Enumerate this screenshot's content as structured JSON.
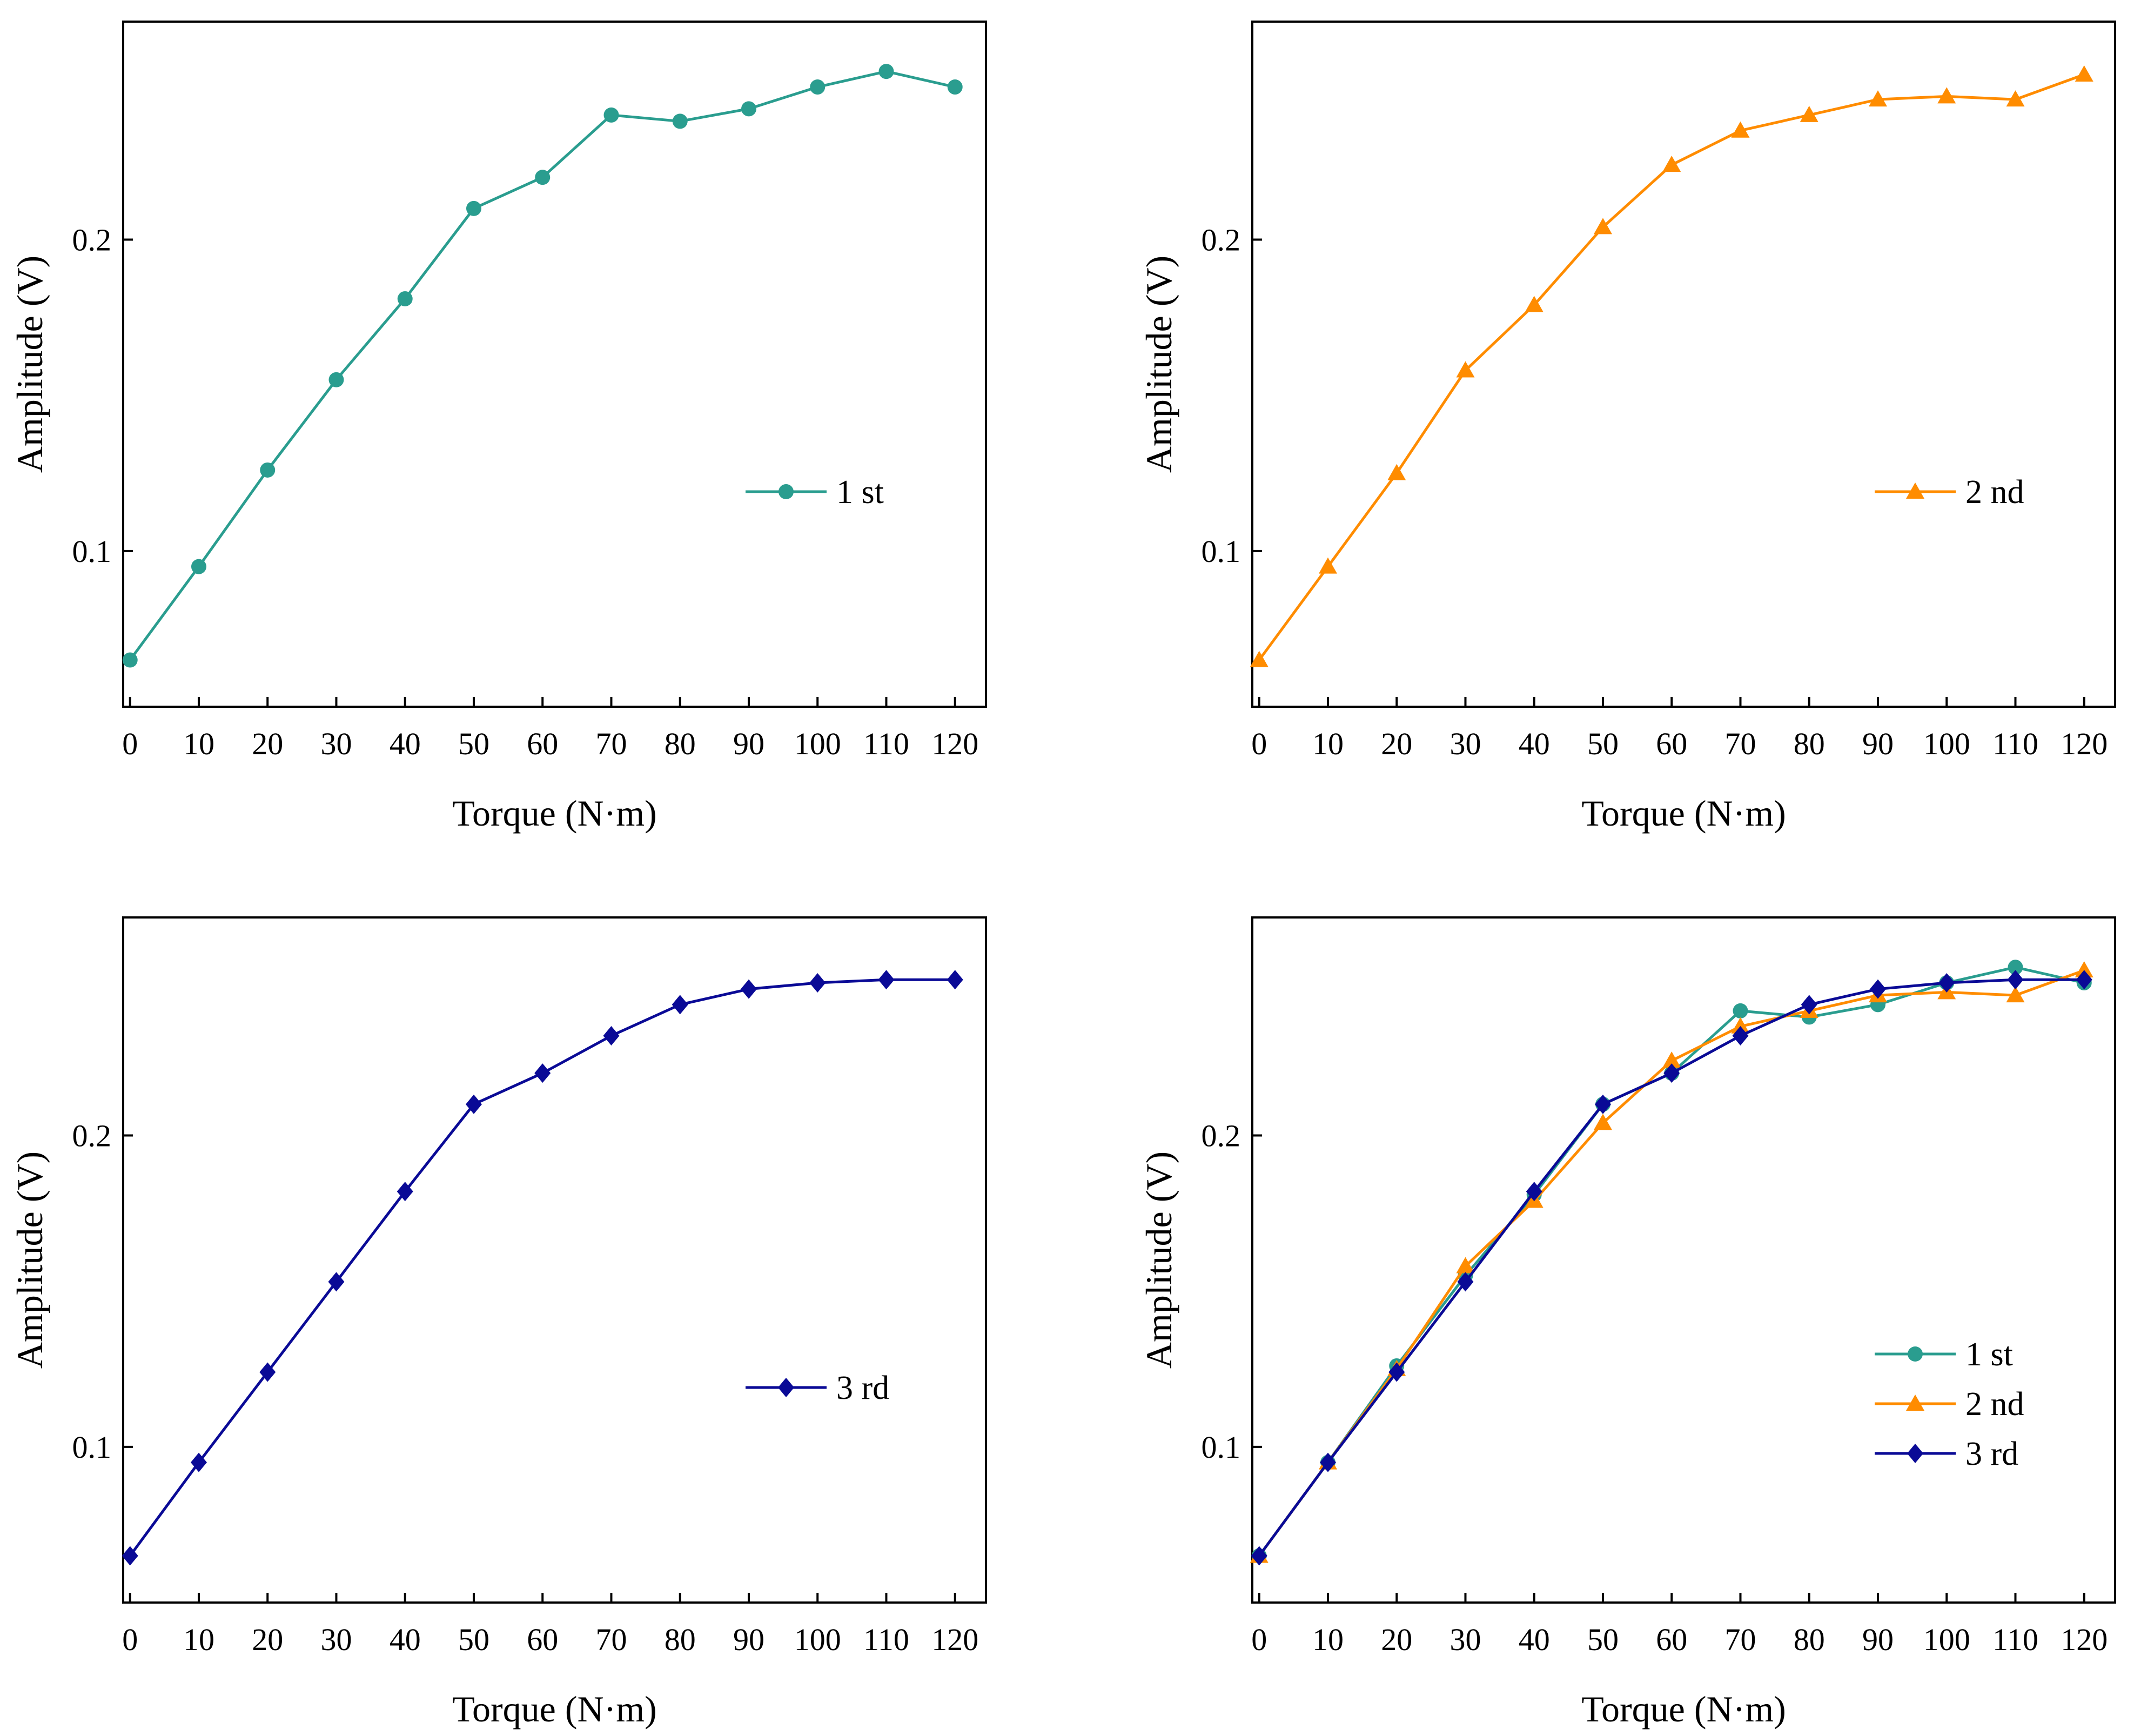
{
  "colors": {
    "series_1": "#2a9d8f",
    "series_2": "#ff8c00",
    "series_3": "#0a0a96",
    "axis": "#000000"
  },
  "marker_shapes": {
    "series_1": "circle",
    "series_2": "triangle",
    "series_3": "diamond"
  },
  "chart_data": [
    {
      "type": "line",
      "xlabel": "Torque (N·m)",
      "ylabel": "Amplitude (V)",
      "x": [
        0,
        10,
        20,
        30,
        40,
        50,
        60,
        70,
        80,
        90,
        100,
        110,
        120
      ],
      "xticks": [
        "0",
        "10",
        "20",
        "30",
        "40",
        "50",
        "60",
        "70",
        "80",
        "90",
        "100",
        "110",
        "120"
      ],
      "yticks": [
        "0.1",
        "0.2"
      ],
      "xlim": [
        -1,
        124.5
      ],
      "ylim": [
        0.05,
        0.27
      ],
      "legend_position": "center-right",
      "series": [
        {
          "name": "1 st",
          "color_key": "series_1",
          "marker": "circle",
          "values": [
            0.065,
            0.095,
            0.126,
            0.155,
            0.181,
            0.21,
            0.22,
            0.24,
            0.238,
            0.242,
            0.249,
            0.254,
            0.249
          ]
        }
      ]
    },
    {
      "type": "line",
      "xlabel": "Torque (N·m)",
      "ylabel": "Amplitude (V)",
      "x": [
        0,
        10,
        20,
        30,
        40,
        50,
        60,
        70,
        80,
        90,
        100,
        110,
        120
      ],
      "xticks": [
        "0",
        "10",
        "20",
        "30",
        "40",
        "50",
        "60",
        "70",
        "80",
        "90",
        "100",
        "110",
        "120"
      ],
      "yticks": [
        "0.1",
        "0.2"
      ],
      "xlim": [
        -1,
        124.5
      ],
      "ylim": [
        0.05,
        0.27
      ],
      "legend_position": "center-right",
      "series": [
        {
          "name": "2 nd",
          "color_key": "series_2",
          "marker": "triangle",
          "values": [
            0.065,
            0.095,
            0.125,
            0.158,
            0.179,
            0.204,
            0.224,
            0.235,
            0.24,
            0.245,
            0.246,
            0.245,
            0.253
          ]
        }
      ]
    },
    {
      "type": "line",
      "xlabel": "Torque (N·m)",
      "ylabel": "Amplitude (V)",
      "x": [
        0,
        10,
        20,
        30,
        40,
        50,
        60,
        70,
        80,
        90,
        100,
        110,
        120
      ],
      "xticks": [
        "0",
        "10",
        "20",
        "30",
        "40",
        "50",
        "60",
        "70",
        "80",
        "90",
        "100",
        "110",
        "120"
      ],
      "yticks": [
        "0.1",
        "0.2"
      ],
      "xlim": [
        -1,
        124.5
      ],
      "ylim": [
        0.05,
        0.27
      ],
      "legend_position": "center-right",
      "series": [
        {
          "name": "3 rd",
          "color_key": "series_3",
          "marker": "diamond",
          "values": [
            0.065,
            0.095,
            0.124,
            0.153,
            0.182,
            0.21,
            0.22,
            0.232,
            0.242,
            0.247,
            0.249,
            0.25,
            0.25
          ]
        }
      ]
    },
    {
      "type": "line",
      "xlabel": "Torque (N·m)",
      "ylabel": "Amplitude (V)",
      "x": [
        0,
        10,
        20,
        30,
        40,
        50,
        60,
        70,
        80,
        90,
        100,
        110,
        120
      ],
      "xticks": [
        "0",
        "10",
        "20",
        "30",
        "40",
        "50",
        "60",
        "70",
        "80",
        "90",
        "100",
        "110",
        "120"
      ],
      "yticks": [
        "0.1",
        "0.2"
      ],
      "xlim": [
        -1,
        124.5
      ],
      "ylim": [
        0.05,
        0.27
      ],
      "legend_position": "lower-right",
      "series": [
        {
          "name": "1 st",
          "color_key": "series_1",
          "marker": "circle",
          "values": [
            0.065,
            0.095,
            0.126,
            0.155,
            0.181,
            0.21,
            0.22,
            0.24,
            0.238,
            0.242,
            0.249,
            0.254,
            0.249
          ]
        },
        {
          "name": "2 nd",
          "color_key": "series_2",
          "marker": "triangle",
          "values": [
            0.065,
            0.095,
            0.125,
            0.158,
            0.179,
            0.204,
            0.224,
            0.235,
            0.24,
            0.245,
            0.246,
            0.245,
            0.253
          ]
        },
        {
          "name": "3 rd",
          "color_key": "series_3",
          "marker": "diamond",
          "values": [
            0.065,
            0.095,
            0.124,
            0.153,
            0.182,
            0.21,
            0.22,
            0.232,
            0.242,
            0.247,
            0.249,
            0.25,
            0.25
          ]
        }
      ]
    }
  ]
}
